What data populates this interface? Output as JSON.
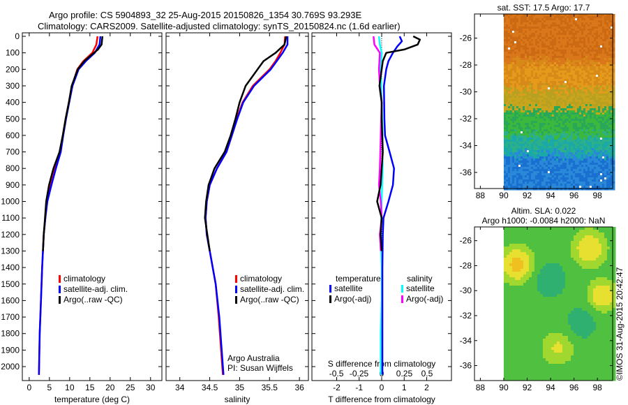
{
  "title_line1": "Argo profile: CS 5904893_32 25-Aug-2015 20150826_1354 30.769S 93.293E",
  "title_line2": "Climatology: CARS2009. Satellite-adjusted climatology: synTS_20150824.nc (1.6d earlier)",
  "credit": "Argo Australia",
  "pi": "PI: Susan Wijffels",
  "copyright": "©IMOS 31-Aug-2015 20:42:47",
  "colors": {
    "climatology": "#ff0000",
    "satellite": "#0000ff",
    "argo": "#000000",
    "sal_satellite": "#00ffff",
    "sal_argo": "#ff00ff"
  },
  "chart_data": [
    {
      "type": "line",
      "name": "temperature-profile",
      "xlabel": "temperature (deg C)",
      "xticks": [
        0,
        5,
        10,
        15,
        20,
        25,
        30
      ],
      "xlim": [
        -1.7,
        32.8
      ],
      "yticks": [
        0,
        100,
        200,
        300,
        400,
        500,
        600,
        700,
        800,
        900,
        1000,
        1100,
        1200,
        1300,
        1400,
        1500,
        1600,
        1700,
        1800,
        1900,
        2000
      ],
      "ylim": [
        2080,
        0
      ],
      "legend": [
        "climatology",
        "satellite-adj. clim.",
        "Argo(..raw -QC)"
      ],
      "series": [
        {
          "name": "climatology",
          "depth": [
            0,
            50,
            100,
            150,
            200,
            300,
            400,
            500,
            600,
            700,
            800,
            900,
            1000,
            1100,
            1200,
            1400,
            1600,
            1800,
            2050
          ],
          "values": [
            16.9,
            16.6,
            15.6,
            13.4,
            11.9,
            10.6,
            9.8,
            9.0,
            8.3,
            7.6,
            6.2,
            5.1,
            4.3,
            4.0,
            3.6,
            3.2,
            2.9,
            2.6,
            2.4
          ]
        },
        {
          "name": "satellite-adj. clim.",
          "depth": [
            0,
            50,
            100,
            150,
            200,
            300,
            400,
            500,
            600,
            700,
            800,
            900,
            1000,
            1100,
            1200,
            1400,
            1600,
            1800,
            2050
          ],
          "values": [
            17.6,
            17.4,
            16.2,
            14.0,
            12.2,
            10.7,
            9.9,
            9.1,
            8.4,
            7.8,
            6.6,
            5.5,
            4.5,
            4.0,
            3.6,
            3.2,
            2.9,
            2.6,
            2.4
          ]
        },
        {
          "name": "Argo(..raw -QC)",
          "depth": [
            0,
            50,
            80,
            100,
            150,
            200,
            300,
            400,
            500,
            600,
            700,
            800,
            900,
            1000,
            1100,
            1200,
            1300
          ],
          "values": [
            18.1,
            17.9,
            17.0,
            16.0,
            13.6,
            12.0,
            10.5,
            9.8,
            9.0,
            8.3,
            7.5,
            6.0,
            4.9,
            4.2,
            3.9,
            3.6,
            3.4
          ]
        }
      ]
    },
    {
      "type": "line",
      "name": "salinity-profile",
      "xlabel": "salinity",
      "xticks": [
        34,
        34.5,
        35,
        35.5,
        36
      ],
      "xlim": [
        33.77,
        36.15
      ],
      "ylim": [
        2080,
        0
      ],
      "legend": [
        "climatology",
        "satellite-adj. clim.",
        "Argo(..raw -QC)"
      ],
      "series": [
        {
          "name": "climatology",
          "depth": [
            0,
            50,
            100,
            150,
            200,
            300,
            400,
            500,
            600,
            700,
            800,
            900,
            1000,
            1100,
            1200,
            1300,
            1500,
            1700,
            2050
          ],
          "values": [
            35.76,
            35.75,
            35.68,
            35.6,
            35.5,
            35.22,
            35.05,
            34.95,
            34.87,
            34.78,
            34.62,
            34.5,
            34.45,
            34.43,
            34.45,
            34.5,
            34.6,
            34.65,
            34.72
          ]
        },
        {
          "name": "satellite-adj. clim.",
          "depth": [
            0,
            50,
            100,
            150,
            200,
            300,
            400,
            500,
            600,
            700,
            800,
            900,
            1000,
            1100,
            1200,
            1300,
            1500,
            1700,
            2050
          ],
          "values": [
            35.8,
            35.8,
            35.72,
            35.62,
            35.52,
            35.24,
            35.06,
            34.96,
            34.87,
            34.78,
            34.62,
            34.5,
            34.45,
            34.43,
            34.45,
            34.5,
            34.6,
            34.66,
            34.73
          ]
        },
        {
          "name": "Argo(..raw -QC)",
          "depth": [
            0,
            50,
            100,
            150,
            200,
            250,
            300,
            400,
            500,
            600,
            700,
            800,
            900,
            1000,
            1100,
            1200,
            1300
          ],
          "values": [
            35.78,
            35.75,
            35.6,
            35.4,
            35.3,
            35.2,
            35.1,
            35.0,
            34.93,
            34.85,
            34.75,
            34.58,
            34.48,
            34.44,
            34.42,
            34.46,
            34.5
          ]
        }
      ]
    },
    {
      "type": "line",
      "name": "difference-profile",
      "xlabel": "T difference from climatology",
      "xticks": [
        -2,
        -1,
        0,
        1,
        2
      ],
      "xlim": [
        -3.1,
        3.1
      ],
      "x2label": "S difference from climatology",
      "x2ticks": [
        -0.5,
        -0.25,
        0,
        0.25,
        0.5
      ],
      "x2lim": [
        -0.77,
        0.77
      ],
      "ylim": [
        2080,
        0
      ],
      "legend_temperature": {
        "title": "temperature",
        "items": [
          "satellite",
          "Argo(-adj)"
        ]
      },
      "legend_salinity": {
        "title": "salinity",
        "items": [
          "satellite",
          "Argo(-adj)"
        ]
      },
      "series": [
        {
          "name": "T satellite",
          "axis": "T",
          "depth": [
            0,
            30,
            60,
            100,
            150,
            200,
            300,
            500,
            600,
            700,
            800,
            900,
            1000,
            1100,
            1200,
            1400,
            2050
          ],
          "values": [
            0.8,
            0.9,
            0.7,
            0.5,
            0.3,
            0.2,
            0.1,
            0.12,
            0.15,
            0.35,
            0.55,
            0.5,
            0.3,
            0.08,
            0.05,
            0.03,
            0.03
          ]
        },
        {
          "name": "T Argo(-adj)",
          "axis": "T",
          "depth": [
            0,
            20,
            50,
            80,
            100,
            150,
            200,
            300,
            400,
            500,
            700,
            900,
            1000,
            1100,
            1200,
            1300
          ],
          "values": [
            1.4,
            1.7,
            1.6,
            1.0,
            0.2,
            0.05,
            0.0,
            -0.1,
            0.0,
            0.0,
            0.05,
            -0.05,
            -0.2,
            0.0,
            -0.05,
            0.0
          ]
        },
        {
          "name": "S satellite",
          "axis": "S",
          "depth": [
            0,
            50,
            100,
            200,
            400,
            600,
            800,
            1000,
            1200,
            1400,
            1600,
            1800,
            2050
          ],
          "values": [
            -0.03,
            -0.02,
            0.0,
            -0.01,
            0.0,
            0.01,
            0.01,
            0.0,
            -0.01,
            0.0,
            0.0,
            -0.01,
            -0.01
          ]
        },
        {
          "name": "S Argo(-adj)",
          "axis": "S",
          "depth": [
            0,
            50,
            100,
            200,
            300,
            400,
            600,
            800,
            900,
            1000,
            1100,
            1200,
            1300
          ],
          "values": [
            -0.09,
            -0.08,
            -0.02,
            -0.03,
            -0.02,
            0.0,
            -0.01,
            -0.02,
            -0.03,
            -0.01,
            0.0,
            -0.02,
            -0.01
          ]
        }
      ]
    },
    {
      "type": "heatmap",
      "name": "sst-map",
      "title": "sat. SST: 17.5 Argo: 17.7",
      "xticks": [
        88,
        90,
        92,
        94,
        96,
        98
      ],
      "yticks": [
        -26,
        -28,
        -30,
        -32,
        -34,
        -36
      ],
      "xlim": [
        87.5,
        99.3
      ],
      "ylim": [
        -37.2,
        -24.2
      ]
    },
    {
      "type": "heatmap",
      "name": "sla-map",
      "title1": "Altim. SLA: 0.022",
      "title2": "Argo h1000: -0.0084 h2000: NaN",
      "xticks": [
        88,
        90,
        92,
        94,
        96,
        98
      ],
      "yticks": [
        -26,
        -28,
        -30,
        -32,
        -34,
        -36
      ],
      "xlim": [
        87.5,
        99.3
      ],
      "ylim": [
        -37.2,
        -24.9
      ]
    }
  ]
}
